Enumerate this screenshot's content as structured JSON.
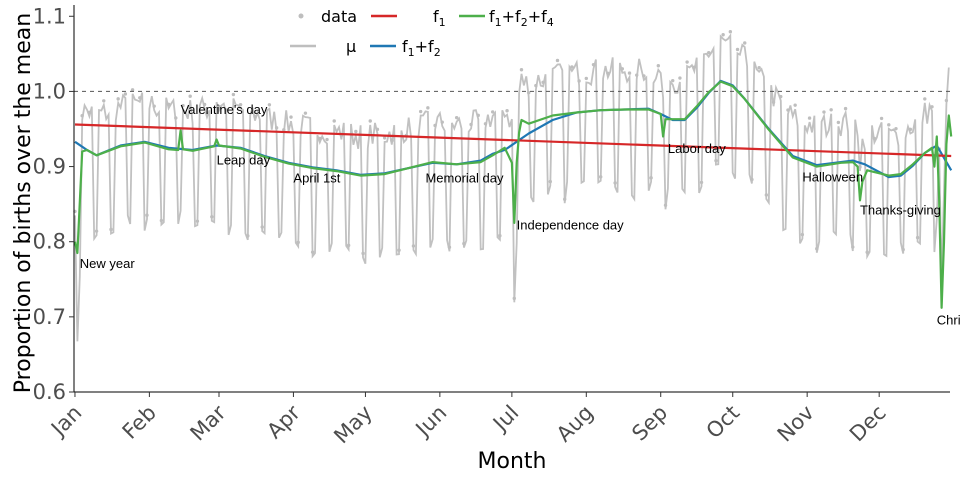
{
  "chart_data": {
    "type": "line",
    "xlabel": "Month",
    "ylabel": "Proportion of births over the mean",
    "ylim": [
      0.6,
      1.115
    ],
    "xlim": [
      0.6,
      365.5
    ],
    "yticks": [
      0.6,
      0.7,
      0.8,
      0.9,
      1.0,
      1.1
    ],
    "ytick_labels": [
      "0.6",
      "0.7",
      "0.8",
      "0.9",
      "1.0",
      "1.1"
    ],
    "month_labels": [
      "Jan",
      "Feb",
      "Mar",
      "Apr",
      "May",
      "Jun",
      "Jul",
      "Aug",
      "Sep",
      "Oct",
      "Nov",
      "Dec"
    ],
    "month_start_days": [
      1,
      32,
      61,
      92,
      122,
      153,
      183,
      214,
      245,
      275,
      306,
      336
    ],
    "reference_line": {
      "y": 1.0,
      "style": "dashed"
    },
    "legend": {
      "placement": "top-center",
      "entries": [
        {
          "key": "data",
          "label": "data",
          "symbol": "point",
          "color": "#bebebe"
        },
        {
          "key": "f1",
          "label": "f",
          "sub": "1",
          "color": "#d62728"
        },
        {
          "key": "f124",
          "label": "f1+f2+f4",
          "color": "#4daf4a"
        },
        {
          "key": "mu",
          "label": "μ",
          "color": "#bebebe"
        },
        {
          "key": "f12",
          "label": "f1+f2",
          "color": "#1f78b4"
        }
      ]
    },
    "data_series_color": "#bebebe",
    "series": [
      {
        "name": "f1",
        "color": "#d62728",
        "x": [
          1,
          366
        ],
        "y": [
          0.956,
          0.914
        ]
      },
      {
        "name": "f1+f2",
        "color": "#1f78b4",
        "x": [
          1,
          6,
          10,
          20,
          30,
          40,
          50,
          60,
          70,
          80,
          90,
          100,
          110,
          120,
          130,
          140,
          150,
          160,
          170,
          175,
          180,
          190,
          200,
          210,
          220,
          230,
          240,
          245,
          250,
          255,
          260,
          265,
          270,
          275,
          280,
          290,
          300,
          310,
          320,
          325,
          330,
          340,
          345,
          350,
          355,
          360,
          366
        ],
        "y": [
          0.933,
          0.922,
          0.915,
          0.928,
          0.933,
          0.925,
          0.922,
          0.928,
          0.925,
          0.914,
          0.905,
          0.899,
          0.895,
          0.889,
          0.891,
          0.898,
          0.905,
          0.903,
          0.908,
          0.917,
          0.922,
          0.944,
          0.962,
          0.972,
          0.975,
          0.976,
          0.977,
          0.97,
          0.962,
          0.962,
          0.978,
          0.998,
          1.014,
          1.008,
          0.99,
          0.95,
          0.914,
          0.902,
          0.906,
          0.908,
          0.903,
          0.886,
          0.888,
          0.901,
          0.918,
          0.928,
          0.895
        ]
      },
      {
        "name": "f1+f2+f4",
        "color": "#4daf4a",
        "x": [
          1,
          2,
          4,
          6,
          10,
          20,
          30,
          40,
          44,
          45,
          46,
          50,
          59,
          60,
          61,
          70,
          80,
          90,
          100,
          110,
          120,
          130,
          140,
          150,
          160,
          170,
          175,
          180,
          183,
          184,
          185,
          186,
          187,
          190,
          200,
          210,
          220,
          230,
          240,
          245,
          246,
          247,
          250,
          255,
          260,
          265,
          270,
          275,
          280,
          290,
          300,
          310,
          320,
          325,
          327,
          328,
          329,
          331,
          340,
          345,
          350,
          355,
          358,
          359,
          360,
          361,
          362,
          363,
          364,
          365,
          366
        ],
        "y": [
          0.8,
          0.785,
          0.92,
          0.922,
          0.915,
          0.927,
          0.932,
          0.923,
          0.922,
          0.948,
          0.923,
          0.921,
          0.927,
          0.936,
          0.928,
          0.924,
          0.913,
          0.904,
          0.898,
          0.894,
          0.888,
          0.89,
          0.898,
          0.906,
          0.903,
          0.906,
          0.915,
          0.925,
          0.905,
          0.825,
          0.905,
          0.945,
          0.962,
          0.957,
          0.968,
          0.972,
          0.975,
          0.976,
          0.976,
          0.97,
          0.94,
          0.963,
          0.963,
          0.963,
          0.98,
          0.999,
          1.013,
          1.007,
          0.99,
          0.949,
          0.912,
          0.9,
          0.905,
          0.906,
          0.9,
          0.855,
          0.88,
          0.895,
          0.888,
          0.89,
          0.903,
          0.918,
          0.925,
          0.9,
          0.94,
          0.855,
          0.712,
          0.8,
          0.93,
          0.968,
          0.94
        ]
      }
    ],
    "annotations": [
      {
        "text": "New year",
        "x": 3,
        "y": 0.765
      },
      {
        "text": "Valentine's day",
        "x": 45,
        "y": 0.97
      },
      {
        "text": "Leap day",
        "x": 60,
        "y": 0.903
      },
      {
        "text": "April 1st",
        "x": 92,
        "y": 0.879
      },
      {
        "text": "Memorial day",
        "x": 147,
        "y": 0.879
      },
      {
        "text": "Independence day",
        "x": 185,
        "y": 0.816
      },
      {
        "text": "Labor day",
        "x": 248,
        "y": 0.918
      },
      {
        "text": "Halloween",
        "x": 304,
        "y": 0.88
      },
      {
        "text": "Thanks-giving",
        "x": 328,
        "y": 0.836
      },
      {
        "text": "Christmas",
        "x": 360,
        "y": 0.69
      }
    ]
  }
}
